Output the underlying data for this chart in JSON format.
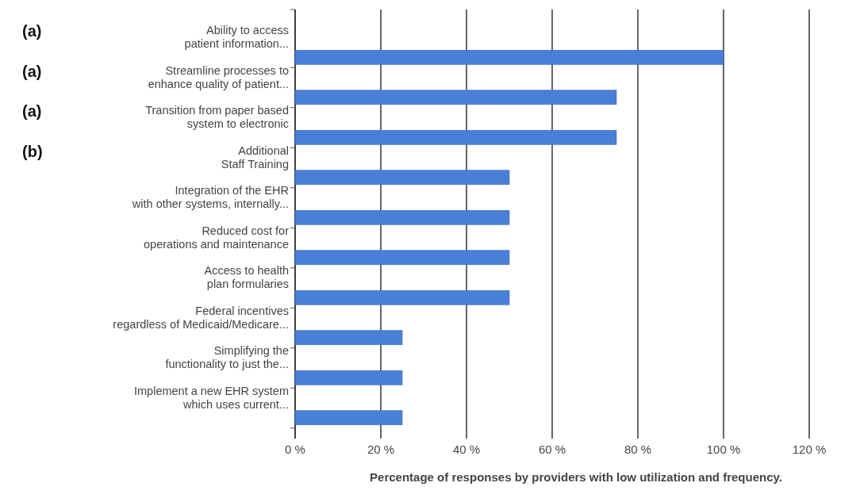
{
  "chart_data": {
    "type": "bar",
    "orientation": "horizontal",
    "categories": [
      "Ability to access\npatient information...",
      "Streamline processes to\nenhance quality of patient...",
      "Transition from paper based\nsystem to electronic",
      "Additional\nStaff Training",
      "Integration of the EHR\nwith other systems, internally...",
      "Reduced cost for\noperations and maintenance",
      "Access to health\nplan formularies",
      "Federal incentives\nregardless of Medicaid/Medicare...",
      "Simplifying the\nfunctionality to just the...",
      "Implement a new EHR system\nwhich uses current..."
    ],
    "values": [
      100,
      75,
      75,
      50,
      50,
      50,
      50,
      25,
      25,
      25
    ],
    "color": "#4a7fd8",
    "xlim": [
      0,
      120
    ],
    "xticks": [
      {
        "value": 0,
        "label": "0 %"
      },
      {
        "value": 20,
        "label": "20 %"
      },
      {
        "value": 40,
        "label": "40 %"
      },
      {
        "value": 60,
        "label": "60 %"
      },
      {
        "value": 80,
        "label": "80 %"
      },
      {
        "value": 100,
        "label": "100 %"
      },
      {
        "value": 120,
        "label": "120 %"
      }
    ],
    "xlabel": "Percentage of responses by providers with low utilization and frequency.",
    "grid": "x",
    "annotations": [
      "(a)",
      "(a)",
      "(a)",
      "(b)"
    ]
  }
}
